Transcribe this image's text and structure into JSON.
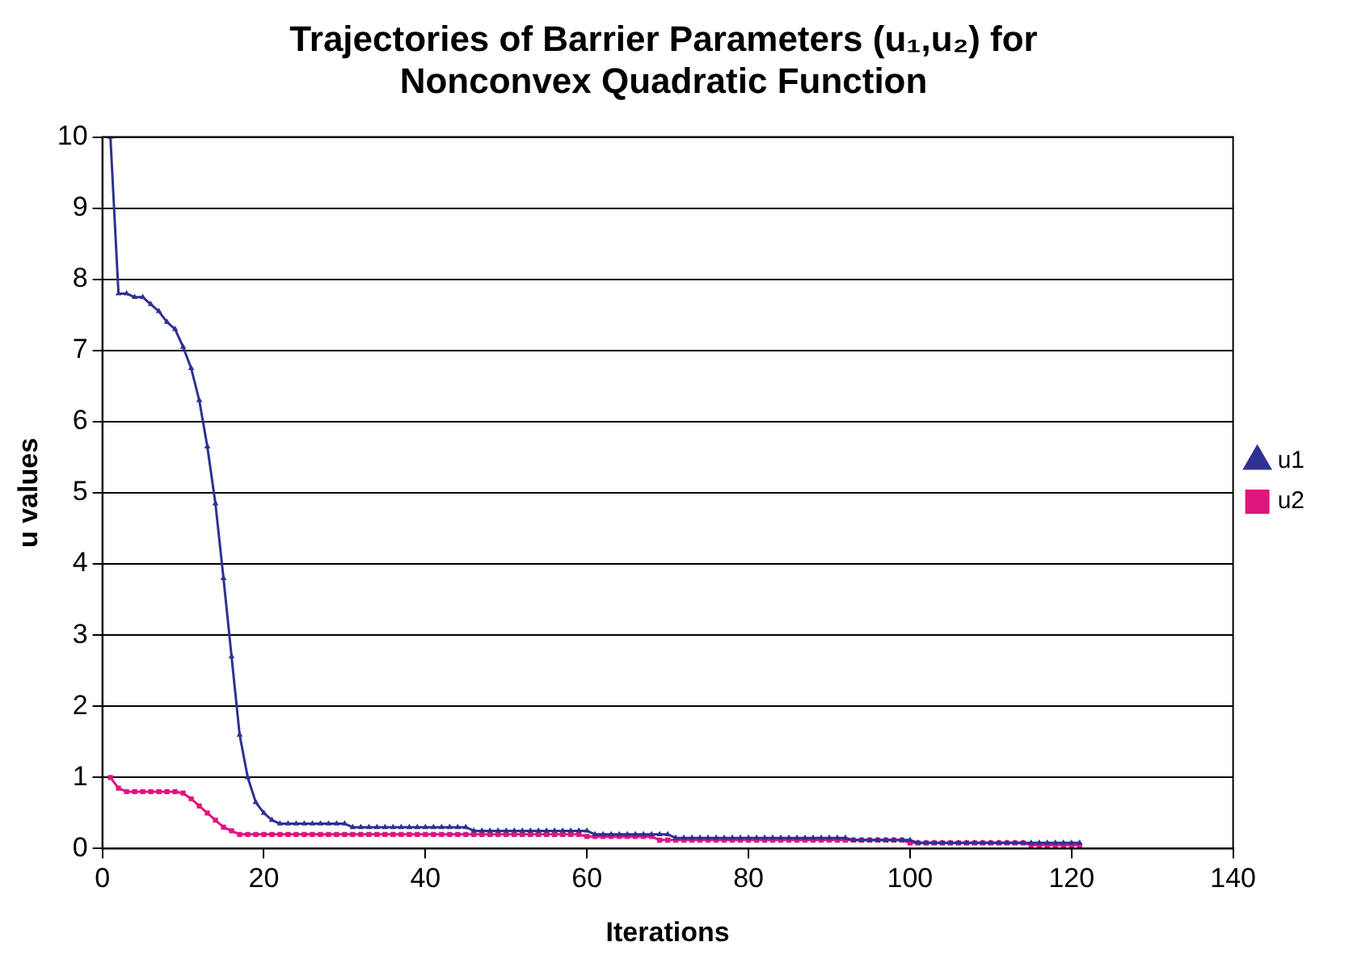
{
  "chart_data": {
    "type": "line",
    "title": [
      "Trajectories of Barrier Parameters (u₁,u₂) for",
      "Nonconvex Quadratic Function"
    ],
    "xlabel": "Iterations",
    "ylabel": "u values",
    "x": [
      1,
      2,
      3,
      4,
      5,
      6,
      7,
      8,
      9,
      10,
      11,
      12,
      13,
      14,
      15,
      16,
      17,
      18,
      19,
      20,
      21,
      22,
      23,
      24,
      25,
      26,
      27,
      28,
      29,
      30,
      31,
      32,
      33,
      34,
      35,
      36,
      37,
      38,
      39,
      40,
      41,
      42,
      43,
      44,
      45,
      46,
      47,
      48,
      49,
      50,
      51,
      52,
      53,
      54,
      55,
      56,
      57,
      58,
      59,
      60,
      61,
      62,
      63,
      64,
      65,
      66,
      67,
      68,
      69,
      70,
      71,
      72,
      73,
      74,
      75,
      76,
      77,
      78,
      79,
      80,
      81,
      82,
      83,
      84,
      85,
      86,
      87,
      88,
      89,
      90,
      91,
      92,
      93,
      94,
      95,
      96,
      97,
      98,
      99,
      100,
      101,
      102,
      103,
      104,
      105,
      106,
      107,
      108,
      109,
      110,
      111,
      112,
      113,
      114,
      115,
      116,
      117,
      118,
      119,
      120,
      121
    ],
    "series": [
      {
        "name": "u1",
        "color": "#2e3192",
        "marker": "triangle",
        "values": [
          10,
          7.8,
          7.8,
          7.75,
          7.75,
          7.65,
          7.55,
          7.4,
          7.3,
          7.05,
          6.75,
          6.3,
          5.65,
          4.85,
          3.8,
          2.7,
          1.6,
          1.0,
          0.65,
          0.5,
          0.4,
          0.35,
          0.35,
          0.35,
          0.35,
          0.35,
          0.35,
          0.35,
          0.35,
          0.35,
          0.3,
          0.3,
          0.3,
          0.3,
          0.3,
          0.3,
          0.3,
          0.3,
          0.3,
          0.3,
          0.3,
          0.3,
          0.3,
          0.3,
          0.3,
          0.25,
          0.25,
          0.25,
          0.25,
          0.25,
          0.25,
          0.25,
          0.25,
          0.25,
          0.25,
          0.25,
          0.25,
          0.25,
          0.25,
          0.25,
          0.2,
          0.2,
          0.2,
          0.2,
          0.2,
          0.2,
          0.2,
          0.2,
          0.2,
          0.2,
          0.15,
          0.15,
          0.15,
          0.15,
          0.15,
          0.15,
          0.15,
          0.15,
          0.15,
          0.15,
          0.15,
          0.15,
          0.15,
          0.15,
          0.15,
          0.15,
          0.15,
          0.15,
          0.15,
          0.15,
          0.15,
          0.15,
          0.12,
          0.12,
          0.12,
          0.12,
          0.12,
          0.12,
          0.12,
          0.12,
          0.08,
          0.08,
          0.08,
          0.08,
          0.08,
          0.08,
          0.08,
          0.08,
          0.08,
          0.08,
          0.08,
          0.08,
          0.08,
          0.08,
          0.08,
          0.08,
          0.08,
          0.08,
          0.08,
          0.08,
          0.08
        ]
      },
      {
        "name": "u2",
        "color": "#e0147f",
        "marker": "square",
        "values": [
          1.0,
          0.85,
          0.8,
          0.8,
          0.8,
          0.8,
          0.8,
          0.8,
          0.8,
          0.78,
          0.7,
          0.6,
          0.5,
          0.4,
          0.3,
          0.25,
          0.2,
          0.2,
          0.2,
          0.2,
          0.2,
          0.2,
          0.2,
          0.2,
          0.2,
          0.2,
          0.2,
          0.2,
          0.2,
          0.2,
          0.2,
          0.2,
          0.2,
          0.2,
          0.2,
          0.2,
          0.2,
          0.2,
          0.2,
          0.2,
          0.2,
          0.2,
          0.2,
          0.2,
          0.2,
          0.2,
          0.2,
          0.2,
          0.2,
          0.2,
          0.2,
          0.2,
          0.2,
          0.2,
          0.2,
          0.2,
          0.2,
          0.2,
          0.2,
          0.17,
          0.17,
          0.17,
          0.17,
          0.17,
          0.17,
          0.17,
          0.17,
          0.17,
          0.12,
          0.12,
          0.12,
          0.12,
          0.12,
          0.12,
          0.12,
          0.12,
          0.12,
          0.12,
          0.12,
          0.12,
          0.12,
          0.12,
          0.12,
          0.12,
          0.12,
          0.12,
          0.12,
          0.12,
          0.12,
          0.12,
          0.12,
          0.12,
          0.12,
          0.12,
          0.12,
          0.12,
          0.12,
          0.12,
          0.12,
          0.08,
          0.08,
          0.08,
          0.08,
          0.08,
          0.08,
          0.08,
          0.08,
          0.08,
          0.08,
          0.08,
          0.08,
          0.08,
          0.08,
          0.08,
          0.05,
          0.05,
          0.05,
          0.05,
          0.05,
          0.05,
          0.05
        ]
      }
    ],
    "xlim": [
      0,
      140
    ],
    "xticks": [
      0,
      20,
      40,
      60,
      80,
      100,
      120,
      140
    ],
    "ylim": [
      0,
      10
    ],
    "yticks": [
      0,
      1,
      2,
      3,
      4,
      5,
      6,
      7,
      8,
      9,
      10
    ],
    "grid": "y",
    "legend": "right",
    "line_style": "solid"
  }
}
